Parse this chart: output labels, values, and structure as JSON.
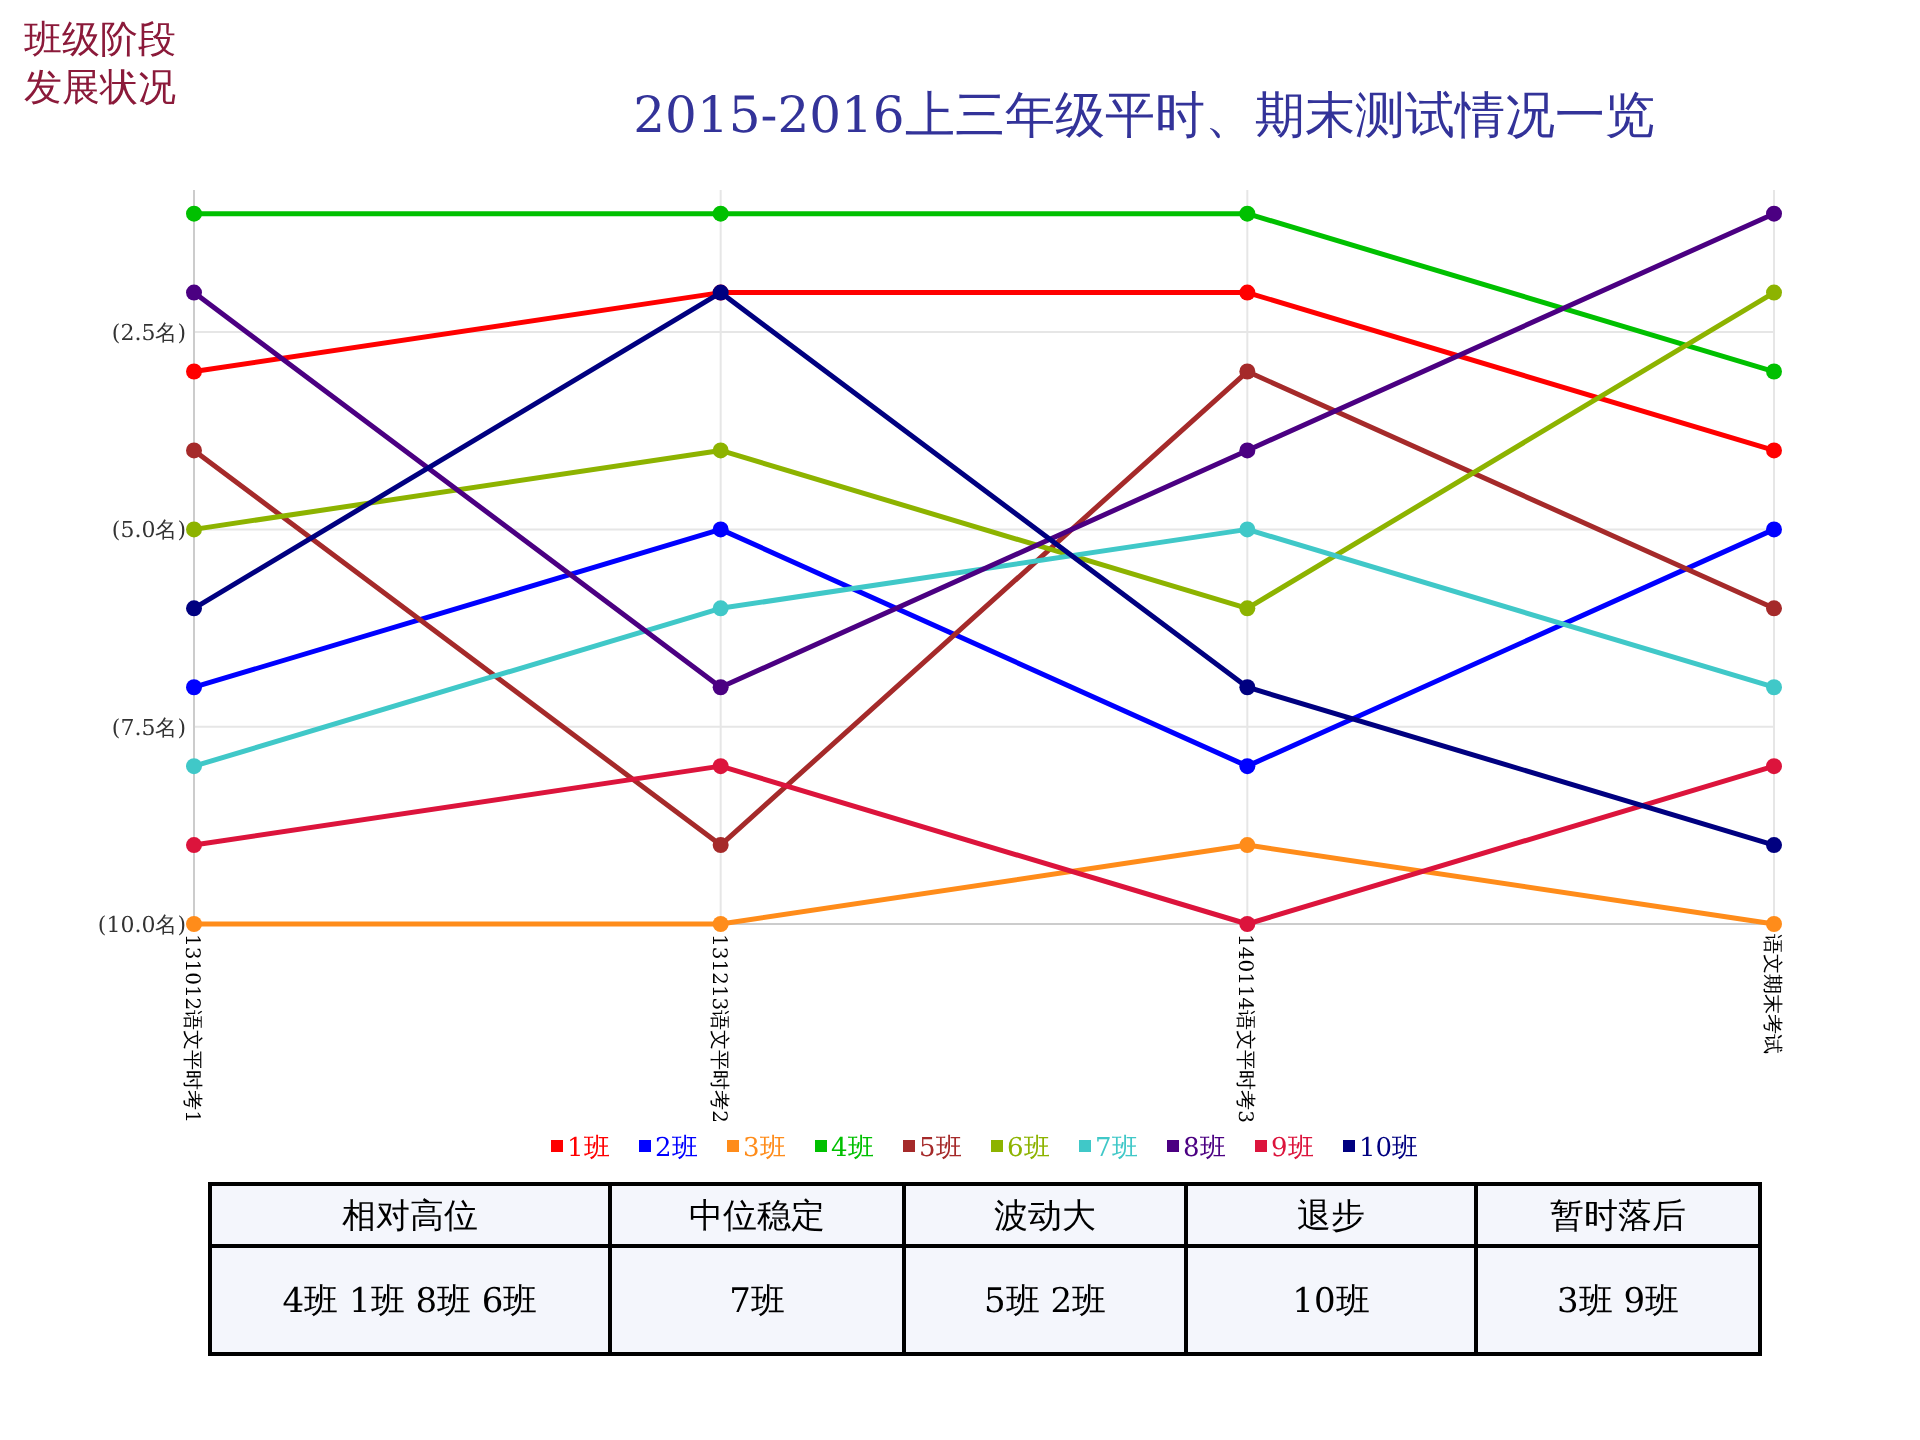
{
  "chart_data": {
    "type": "line",
    "title": "2015-2016上三年级平时、期末测试情况一览",
    "subtitle": "班级阶段发展状况",
    "categories": [
      "131012语文平时考1",
      "131213语文平时考2",
      "140114语文平时考3",
      "语文期末考试"
    ],
    "series": [
      {
        "name": "1班",
        "color": "#ff0000",
        "values": [
          3,
          2,
          2,
          4
        ]
      },
      {
        "name": "2班",
        "color": "#0000ff",
        "values": [
          7,
          5,
          8,
          5
        ]
      },
      {
        "name": "3班",
        "color": "#ff8c1a",
        "values": [
          10,
          10,
          9,
          10
        ]
      },
      {
        "name": "4班",
        "color": "#00c000",
        "values": [
          1,
          1,
          1,
          3
        ]
      },
      {
        "name": "5班",
        "color": "#a52a2a",
        "values": [
          4,
          9,
          3,
          6
        ]
      },
      {
        "name": "6班",
        "color": "#8db300",
        "values": [
          5,
          4,
          6,
          2
        ]
      },
      {
        "name": "7班",
        "color": "#40c8c8",
        "values": [
          8,
          6,
          5,
          7
        ]
      },
      {
        "name": "8班",
        "color": "#4b0082",
        "values": [
          2,
          7,
          4,
          1
        ]
      },
      {
        "name": "9班",
        "color": "#dc143c",
        "values": [
          9,
          8,
          10,
          8
        ]
      },
      {
        "name": "10班",
        "color": "#000080",
        "values": [
          6,
          2,
          7,
          9
        ]
      }
    ],
    "ylim": [
      10,
      0.7
    ],
    "yticks": [
      {
        "value": 2.5,
        "label": "(2.5名)"
      },
      {
        "value": 5,
        "label": "(5.0名)"
      },
      {
        "value": 7.5,
        "label": "(7.5名)"
      },
      {
        "value": 10,
        "label": "(10.0名)"
      }
    ],
    "grid": true,
    "legend": "bottom",
    "marker": "circle",
    "line_style": "solid",
    "annotations": [
      "相对高位",
      "中位稳定",
      "波动大",
      "退步",
      "暂时落后",
      "4班 1班 8班 6班",
      "7班",
      "5班 2班",
      "10班",
      "3班 9班"
    ]
  }
}
